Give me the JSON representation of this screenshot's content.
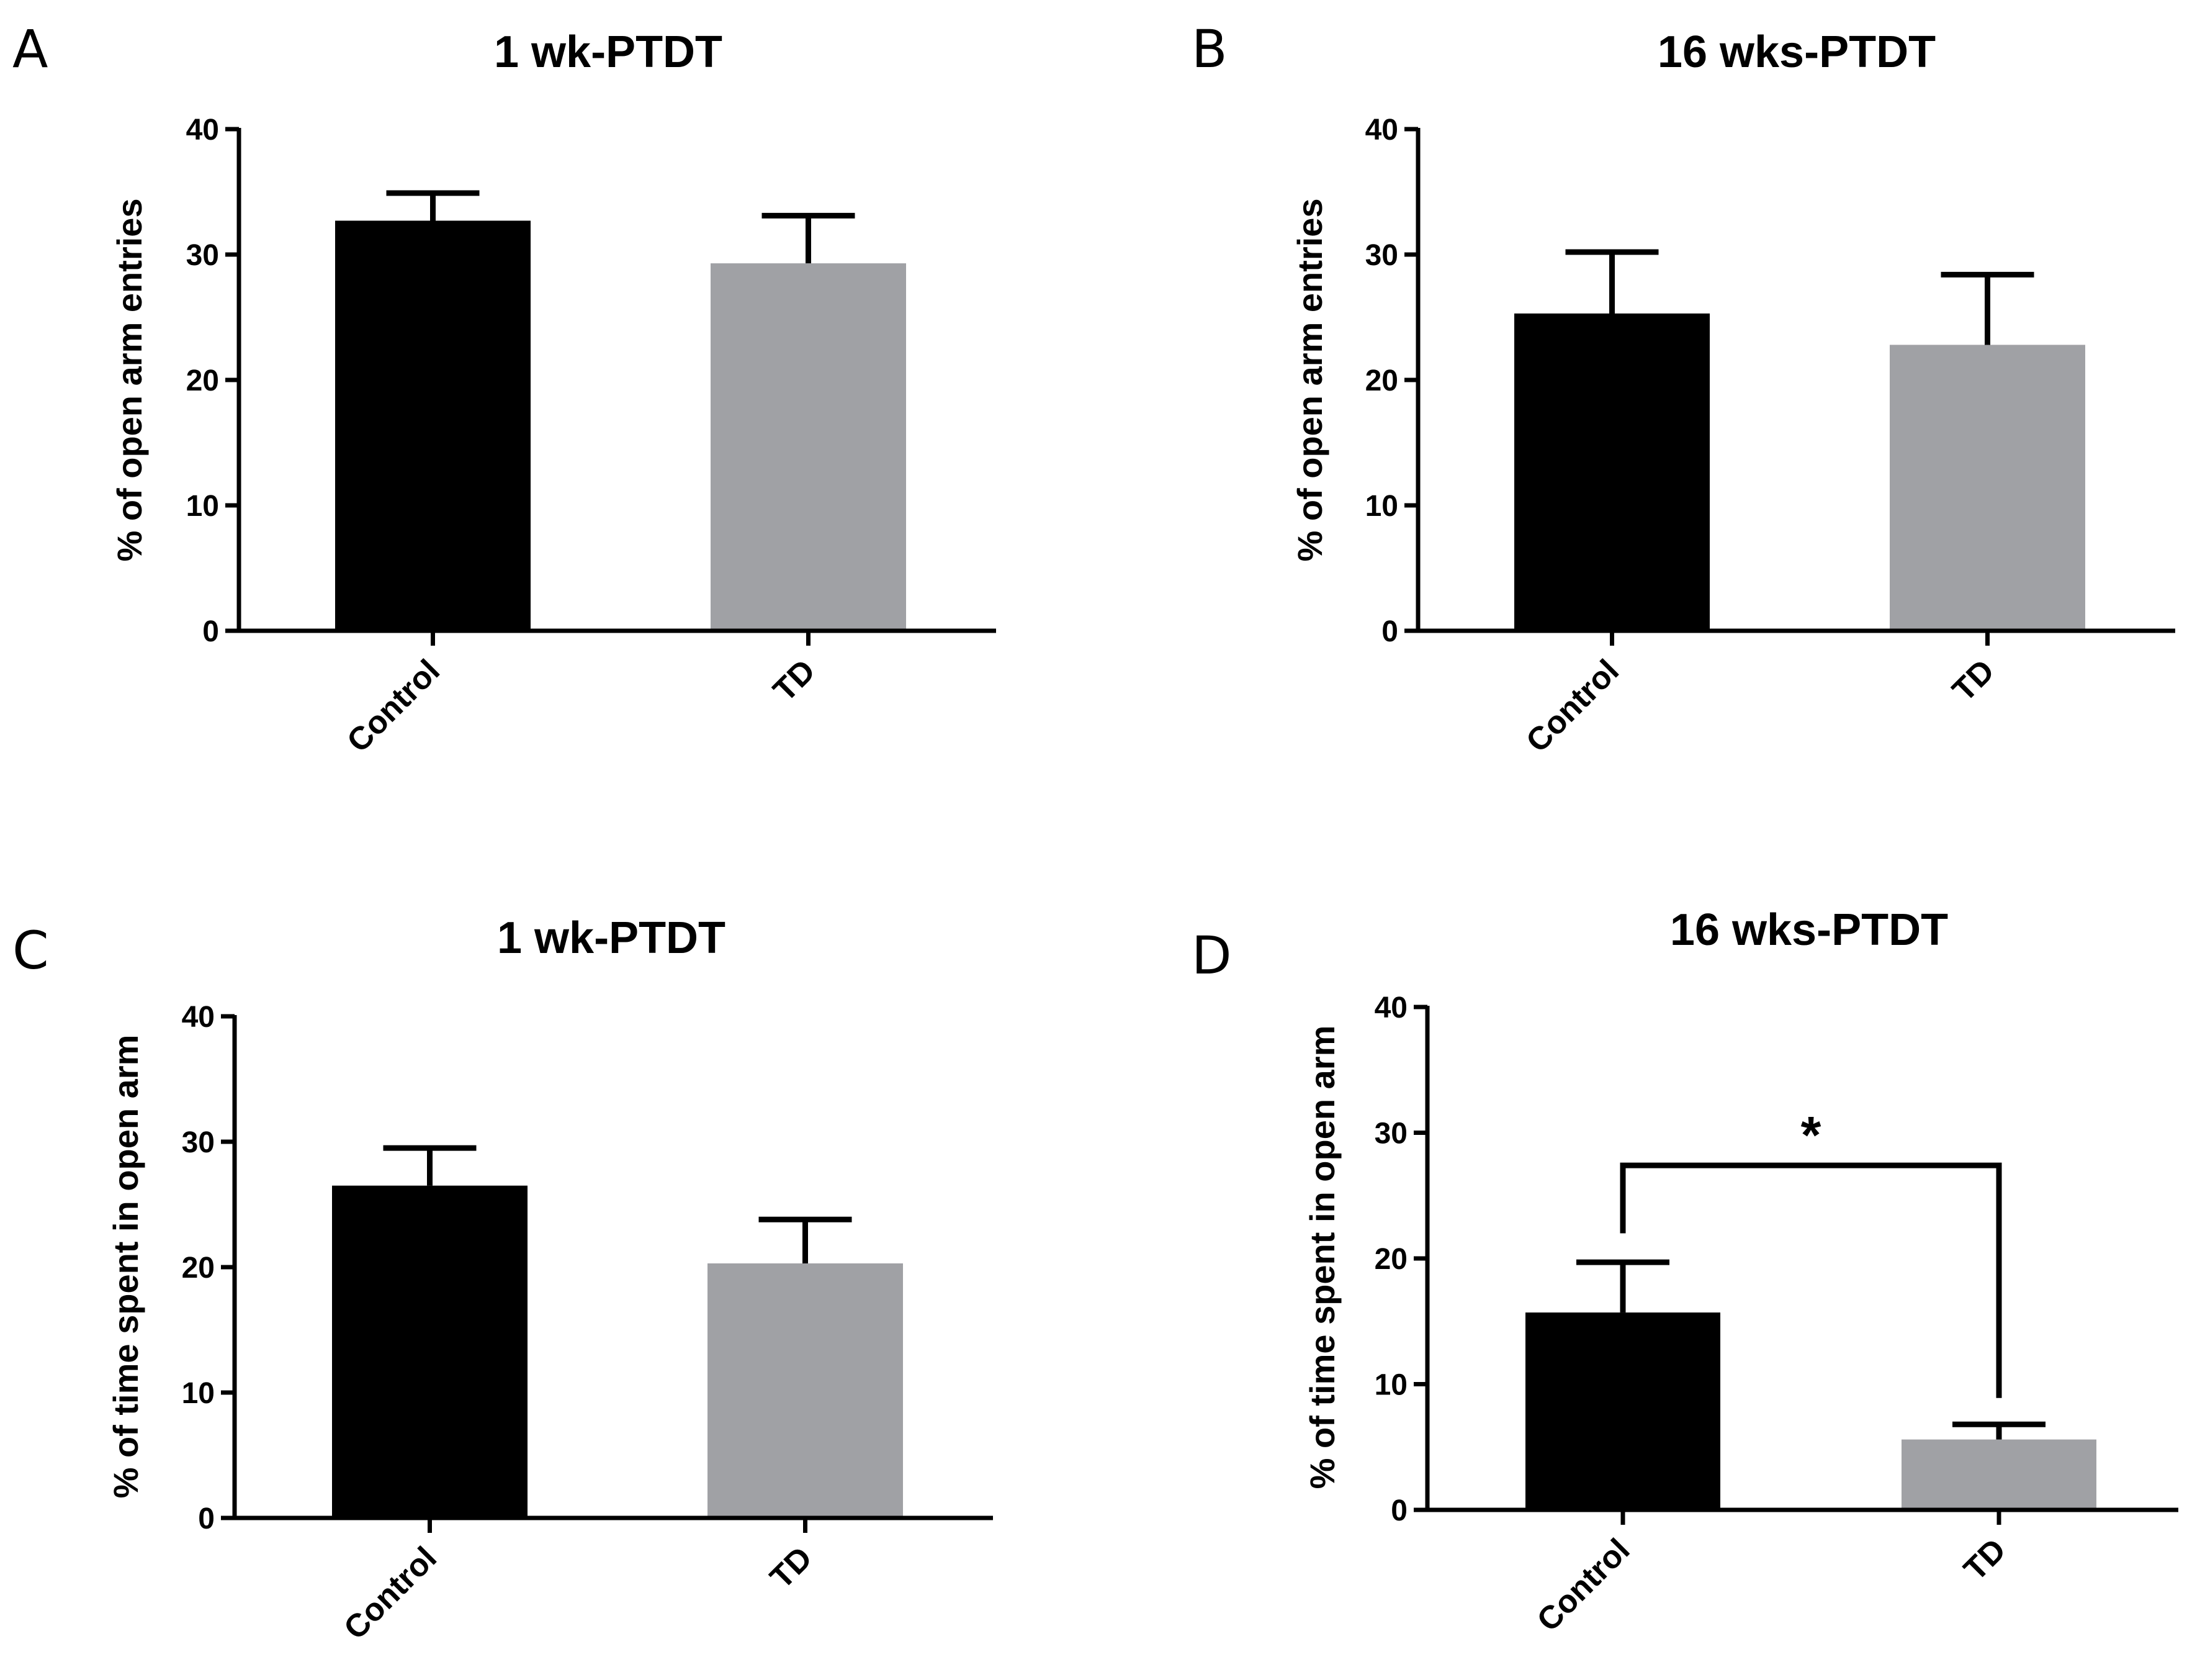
{
  "chart_data": [
    {
      "type": "bar",
      "panel": "A",
      "title": "1 wk-PTDT",
      "xlabel": "",
      "ylabel": "% of open arm entries",
      "ylim": [
        0,
        40
      ],
      "yticks": [
        "0",
        "10",
        "20",
        "30",
        "40"
      ],
      "categories": [
        "Control",
        "TD"
      ],
      "values": [
        32.7,
        29.3
      ],
      "errors": [
        2.2,
        3.8
      ],
      "colors": [
        "#000000",
        "#a0a1a5"
      ],
      "significance": null
    },
    {
      "type": "bar",
      "panel": "B",
      "title": "16 wks-PTDT",
      "xlabel": "",
      "ylabel": "% of open arm entries",
      "ylim": [
        0,
        40
      ],
      "yticks": [
        "0",
        "10",
        "20",
        "30",
        "40"
      ],
      "categories": [
        "Control",
        "TD"
      ],
      "values": [
        25.3,
        22.8
      ],
      "errors": [
        4.9,
        5.6
      ],
      "colors": [
        "#000000",
        "#a0a1a5"
      ],
      "significance": null
    },
    {
      "type": "bar",
      "panel": "C",
      "title": "1 wk-PTDT",
      "xlabel": "",
      "ylabel": "% of time spent in open arm",
      "ylim": [
        0,
        40
      ],
      "yticks": [
        "0",
        "10",
        "20",
        "30",
        "40"
      ],
      "categories": [
        "Control",
        "TD"
      ],
      "values": [
        26.5,
        20.3
      ],
      "errors": [
        3.0,
        3.5
      ],
      "colors": [
        "#000000",
        "#a0a1a5"
      ],
      "significance": null
    },
    {
      "type": "bar",
      "panel": "D",
      "title": "16 wks-PTDT",
      "xlabel": "",
      "ylabel": "% of time spent in open arm",
      "ylim": [
        0,
        40
      ],
      "yticks": [
        "0",
        "10",
        "20",
        "30",
        "40"
      ],
      "categories": [
        "Control",
        "TD"
      ],
      "values": [
        15.7,
        5.6
      ],
      "errors": [
        4.0,
        1.2
      ],
      "colors": [
        "#000000",
        "#a0a1a5"
      ],
      "significance": {
        "label": "*",
        "between": [
          "Control",
          "TD"
        ]
      }
    }
  ]
}
